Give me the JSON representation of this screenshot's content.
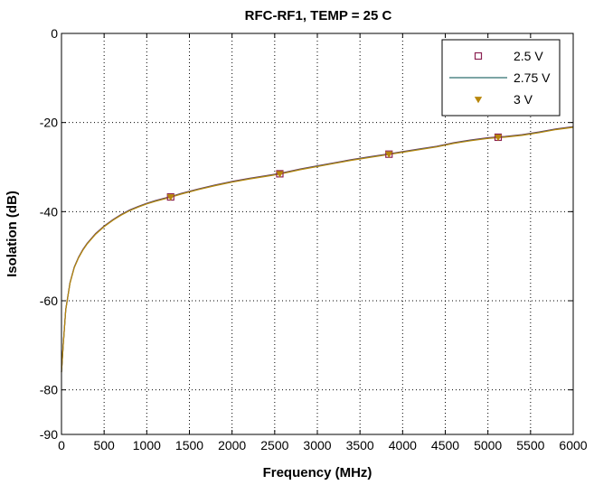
{
  "chart_data": {
    "type": "line",
    "title": "RFC-RF1, TEMP = 25 C",
    "xlabel": "Frequency (MHz)",
    "ylabel": "Isolation (dB)",
    "xlim": [
      0,
      6000
    ],
    "ylim": [
      -90,
      0
    ],
    "xticks": [
      0,
      500,
      1000,
      1500,
      2000,
      2500,
      3000,
      3500,
      4000,
      4500,
      5000,
      5500,
      6000
    ],
    "yticks": [
      0,
      -20,
      -40,
      -60,
      -80,
      -90
    ],
    "grid": "dotted",
    "legend_position": "top-right",
    "x": [
      0,
      20,
      50,
      100,
      150,
      200,
      250,
      300,
      400,
      500,
      600,
      700,
      800,
      900,
      1000,
      1100,
      1200,
      1280,
      1400,
      1600,
      1800,
      2000,
      2200,
      2400,
      2560,
      2800,
      3000,
      3200,
      3400,
      3600,
      3840,
      4000,
      4200,
      4400,
      4600,
      4800,
      5000,
      5120,
      5200,
      5400,
      5600,
      5800,
      6000
    ],
    "series": [
      {
        "name": "2.5 V",
        "color": "#8b2252",
        "marker": "square",
        "marker_x": [
          1280,
          2560,
          3840,
          5120
        ],
        "values": [
          -76,
          -70,
          -62,
          -56,
          -52.5,
          -50.3,
          -48.6,
          -47.2,
          -45,
          -43.3,
          -41.9,
          -40.7,
          -39.7,
          -38.9,
          -38.2,
          -37.6,
          -37.1,
          -36.7,
          -36,
          -35,
          -34.1,
          -33.3,
          -32.6,
          -32,
          -31.5,
          -30.5,
          -29.8,
          -29.1,
          -28.4,
          -27.8,
          -27.1,
          -26.6,
          -26,
          -25.4,
          -24.6,
          -24,
          -23.5,
          -23.3,
          -23.2,
          -22.8,
          -22.2,
          -21.5,
          -21
        ]
      },
      {
        "name": "2.75 V",
        "color": "#2f6f6f",
        "marker": "none",
        "values": [
          -76,
          -70,
          -62,
          -56,
          -52.5,
          -50.3,
          -48.6,
          -47.2,
          -45,
          -43.3,
          -41.9,
          -40.7,
          -39.7,
          -38.9,
          -38.2,
          -37.6,
          -37.1,
          -36.7,
          -36,
          -35,
          -34.1,
          -33.3,
          -32.6,
          -32,
          -31.5,
          -30.5,
          -29.8,
          -29.1,
          -28.4,
          -27.8,
          -27.1,
          -26.6,
          -26,
          -25.4,
          -24.6,
          -24,
          -23.5,
          -23.3,
          -23.2,
          -22.8,
          -22.2,
          -21.5,
          -21
        ]
      },
      {
        "name": "3 V",
        "color": "#b8860b",
        "marker": "triangle-down",
        "marker_x": [
          1280,
          2560,
          3840,
          5120
        ],
        "values": [
          -76,
          -70,
          -62,
          -56,
          -52.5,
          -50.3,
          -48.6,
          -47.2,
          -45,
          -43.3,
          -41.9,
          -40.7,
          -39.7,
          -38.9,
          -38.2,
          -37.6,
          -37.1,
          -36.7,
          -36,
          -35,
          -34.1,
          -33.3,
          -32.6,
          -32,
          -31.5,
          -30.5,
          -29.8,
          -29.1,
          -28.4,
          -27.8,
          -27.1,
          -26.6,
          -26,
          -25.4,
          -24.6,
          -24,
          -23.5,
          -23.3,
          -23.2,
          -22.8,
          -22.2,
          -21.5,
          -21
        ]
      }
    ]
  }
}
